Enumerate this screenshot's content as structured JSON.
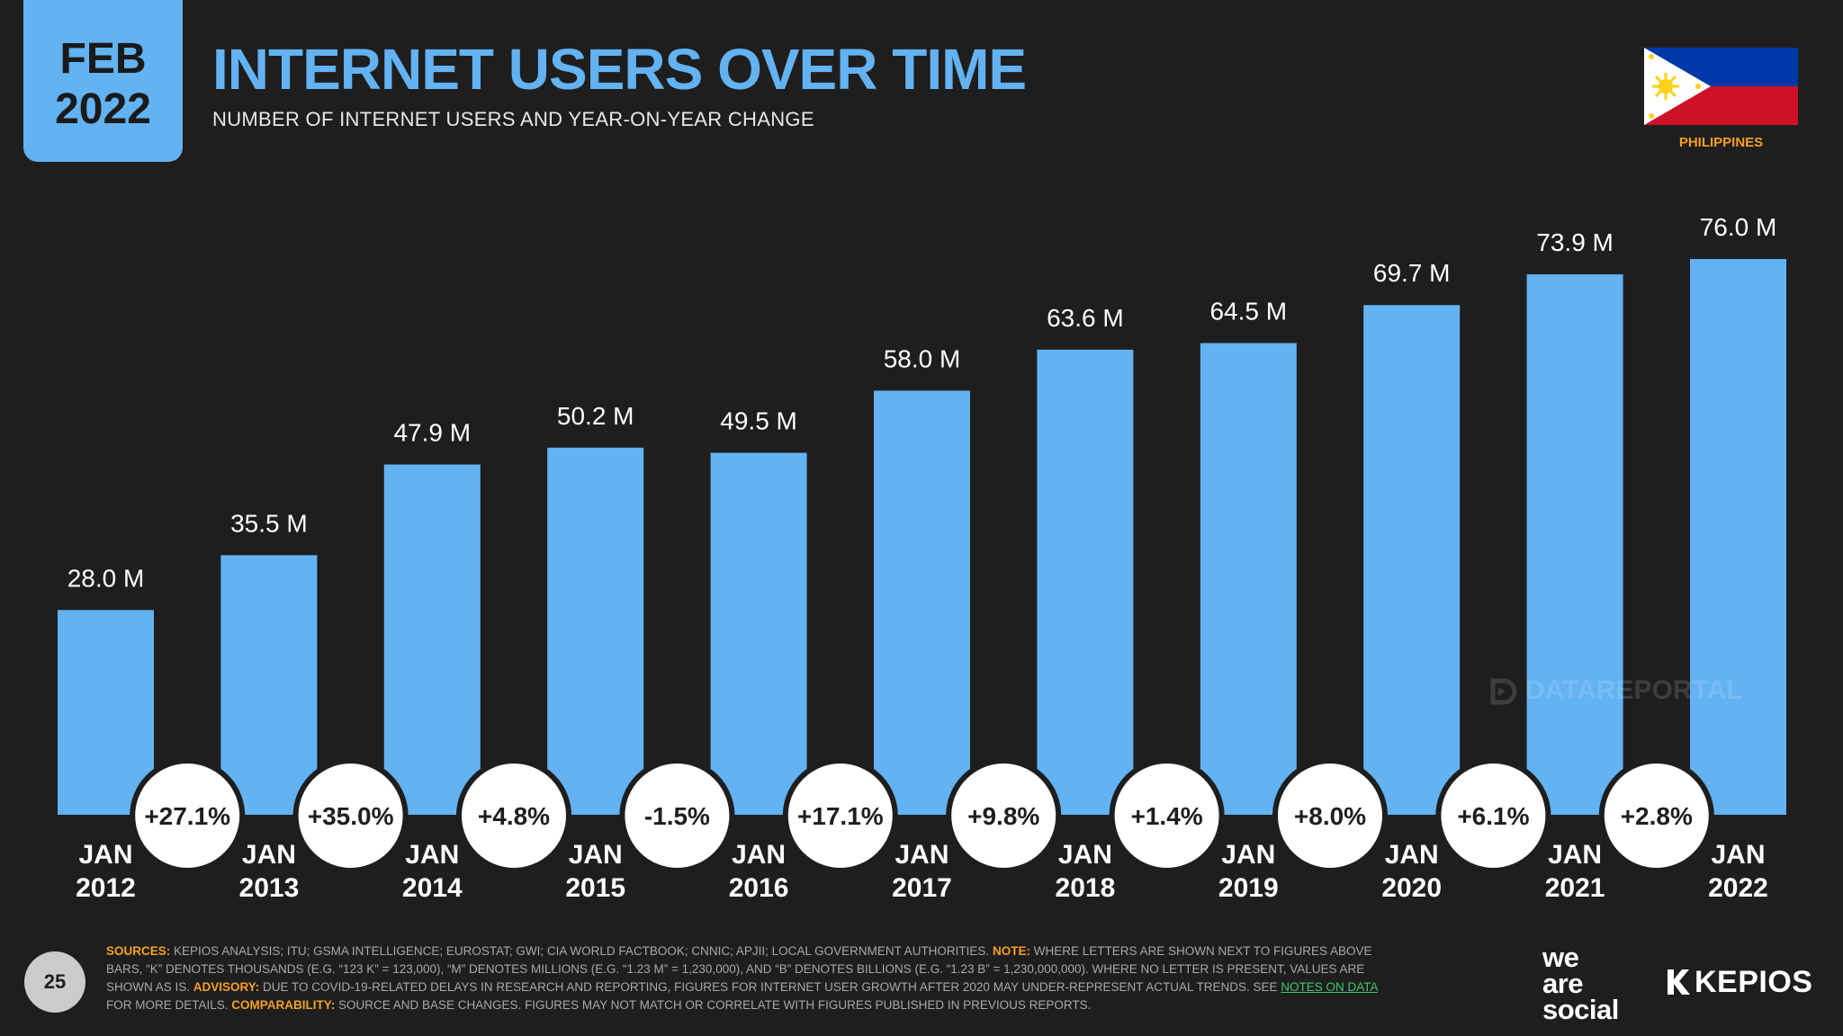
{
  "header": {
    "badge_month": "FEB",
    "badge_year": "2022",
    "title": "INTERNET USERS OVER TIME",
    "subtitle": "NUMBER OF INTERNET USERS AND YEAR-ON-YEAR CHANGE"
  },
  "country": {
    "name": "PHILIPPINES"
  },
  "colors": {
    "bar": "#63b2f2",
    "background": "#1e1e1e",
    "accent_orange": "#f4a021",
    "link_green": "#3ec96b",
    "flag_blue": "#0038a8",
    "flag_red": "#ce1126",
    "flag_white": "#ffffff",
    "flag_yellow": "#fcd116"
  },
  "chart_data": {
    "type": "bar",
    "title": "INTERNET USERS OVER TIME",
    "subtitle": "NUMBER OF INTERNET USERS AND YEAR-ON-YEAR CHANGE",
    "unit": "M",
    "categories": [
      {
        "month": "JAN",
        "year": "2012"
      },
      {
        "month": "JAN",
        "year": "2013"
      },
      {
        "month": "JAN",
        "year": "2014"
      },
      {
        "month": "JAN",
        "year": "2015"
      },
      {
        "month": "JAN",
        "year": "2016"
      },
      {
        "month": "JAN",
        "year": "2017"
      },
      {
        "month": "JAN",
        "year": "2018"
      },
      {
        "month": "JAN",
        "year": "2019"
      },
      {
        "month": "JAN",
        "year": "2020"
      },
      {
        "month": "JAN",
        "year": "2021"
      },
      {
        "month": "JAN",
        "year": "2022"
      }
    ],
    "values": [
      28.0,
      35.5,
      47.9,
      50.2,
      49.5,
      58.0,
      63.6,
      64.5,
      69.7,
      73.9,
      76.0
    ],
    "value_labels": [
      "28.0 M",
      "35.5 M",
      "47.9 M",
      "50.2 M",
      "49.5 M",
      "58.0 M",
      "63.6 M",
      "64.5 M",
      "69.7 M",
      "73.9 M",
      "76.0 M"
    ],
    "yoy_change": [
      "+27.1%",
      "+35.0%",
      "+4.8%",
      "-1.5%",
      "+17.1%",
      "+9.8%",
      "+1.4%",
      "+8.0%",
      "+6.1%",
      "+2.8%"
    ],
    "ylim": [
      0,
      76.0
    ],
    "grid": false,
    "legend": "none"
  },
  "watermark": {
    "text": "DATAREPORTAL"
  },
  "footer": {
    "page_number": "25",
    "sources_label": "SOURCES:",
    "sources_text": " KEPIOS ANALYSIS; ITU; GSMA INTELLIGENCE; EUROSTAT; GWI; CIA WORLD FACTBOOK; CNNIC; APJII; LOCAL GOVERNMENT AUTHORITIES. ",
    "note_label": "NOTE:",
    "note_text": " WHERE LETTERS ARE SHOWN NEXT TO FIGURES ABOVE BARS, “K” DENOTES THOUSANDS (E.G. “123 K” = 123,000), “M” DENOTES MILLIONS (E.G. “1.23 M” = 1,230,000), AND “B” DENOTES BILLIONS (E.G. “1.23 B” = 1,230,000,000). WHERE NO LETTER IS PRESENT, VALUES ARE SHOWN AS IS. ",
    "advisory_label": "ADVISORY:",
    "advisory_text": " DUE TO COVID-19-RELATED DELAYS IN RESEARCH AND REPORTING, FIGURES FOR INTERNET USER GROWTH AFTER 2020 MAY UNDER-REPRESENT ACTUAL TRENDS. SEE ",
    "link_text": "NOTES ON DATA",
    "after_link_text": " FOR MORE DETAILS. ",
    "comparability_label": "COMPARABILITY:",
    "comparability_text": " SOURCE AND BASE CHANGES. FIGURES MAY NOT MATCH OR CORRELATE WITH FIGURES PUBLISHED IN PREVIOUS REPORTS."
  },
  "logos": {
    "was_line1": "we",
    "was_line2": "are",
    "was_line3": "social",
    "kepios": "KEPIOS"
  }
}
